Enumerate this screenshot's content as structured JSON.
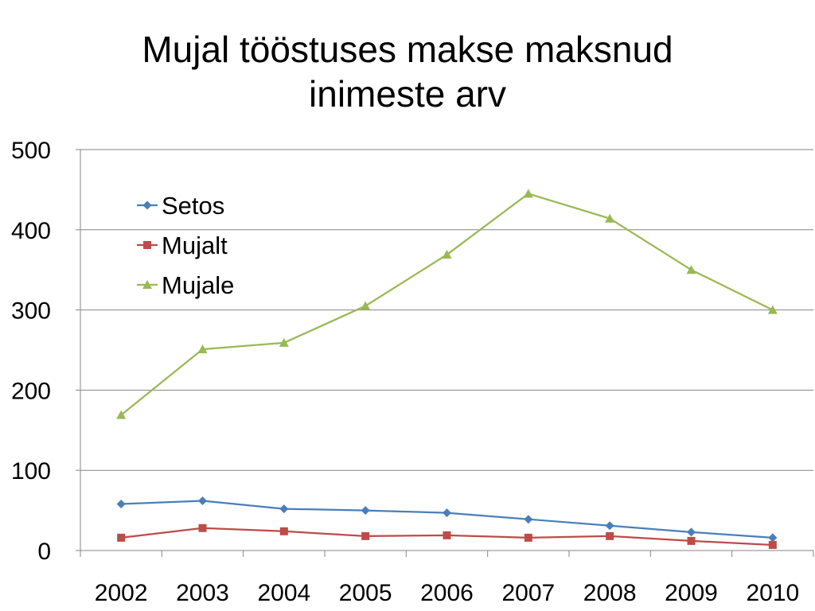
{
  "chart_data": {
    "type": "line",
    "title_line1": "Mujal tööstuses makse maksnud",
    "title_line2": "inimeste arv",
    "xlabel": "",
    "ylabel": "",
    "categories": [
      "2002",
      "2003",
      "2004",
      "2005",
      "2006",
      "2007",
      "2008",
      "2009",
      "2010"
    ],
    "y_ticks": [
      "0",
      "100",
      "200",
      "300",
      "400",
      "500"
    ],
    "ylim": [
      0,
      500
    ],
    "grid": true,
    "legend_position": "top-left",
    "series": [
      {
        "name": "Setos",
        "color": "#4a7ebb",
        "marker": "diamond",
        "values": [
          58,
          62,
          52,
          50,
          47,
          39,
          31,
          23,
          16
        ]
      },
      {
        "name": "Mujalt",
        "color": "#be4b48",
        "marker": "square",
        "values": [
          16,
          28,
          24,
          18,
          19,
          16,
          18,
          12,
          7
        ]
      },
      {
        "name": "Mujale",
        "color": "#98b954",
        "marker": "triangle",
        "values": [
          169,
          251,
          259,
          305,
          369,
          445,
          414,
          350,
          300
        ]
      }
    ]
  }
}
